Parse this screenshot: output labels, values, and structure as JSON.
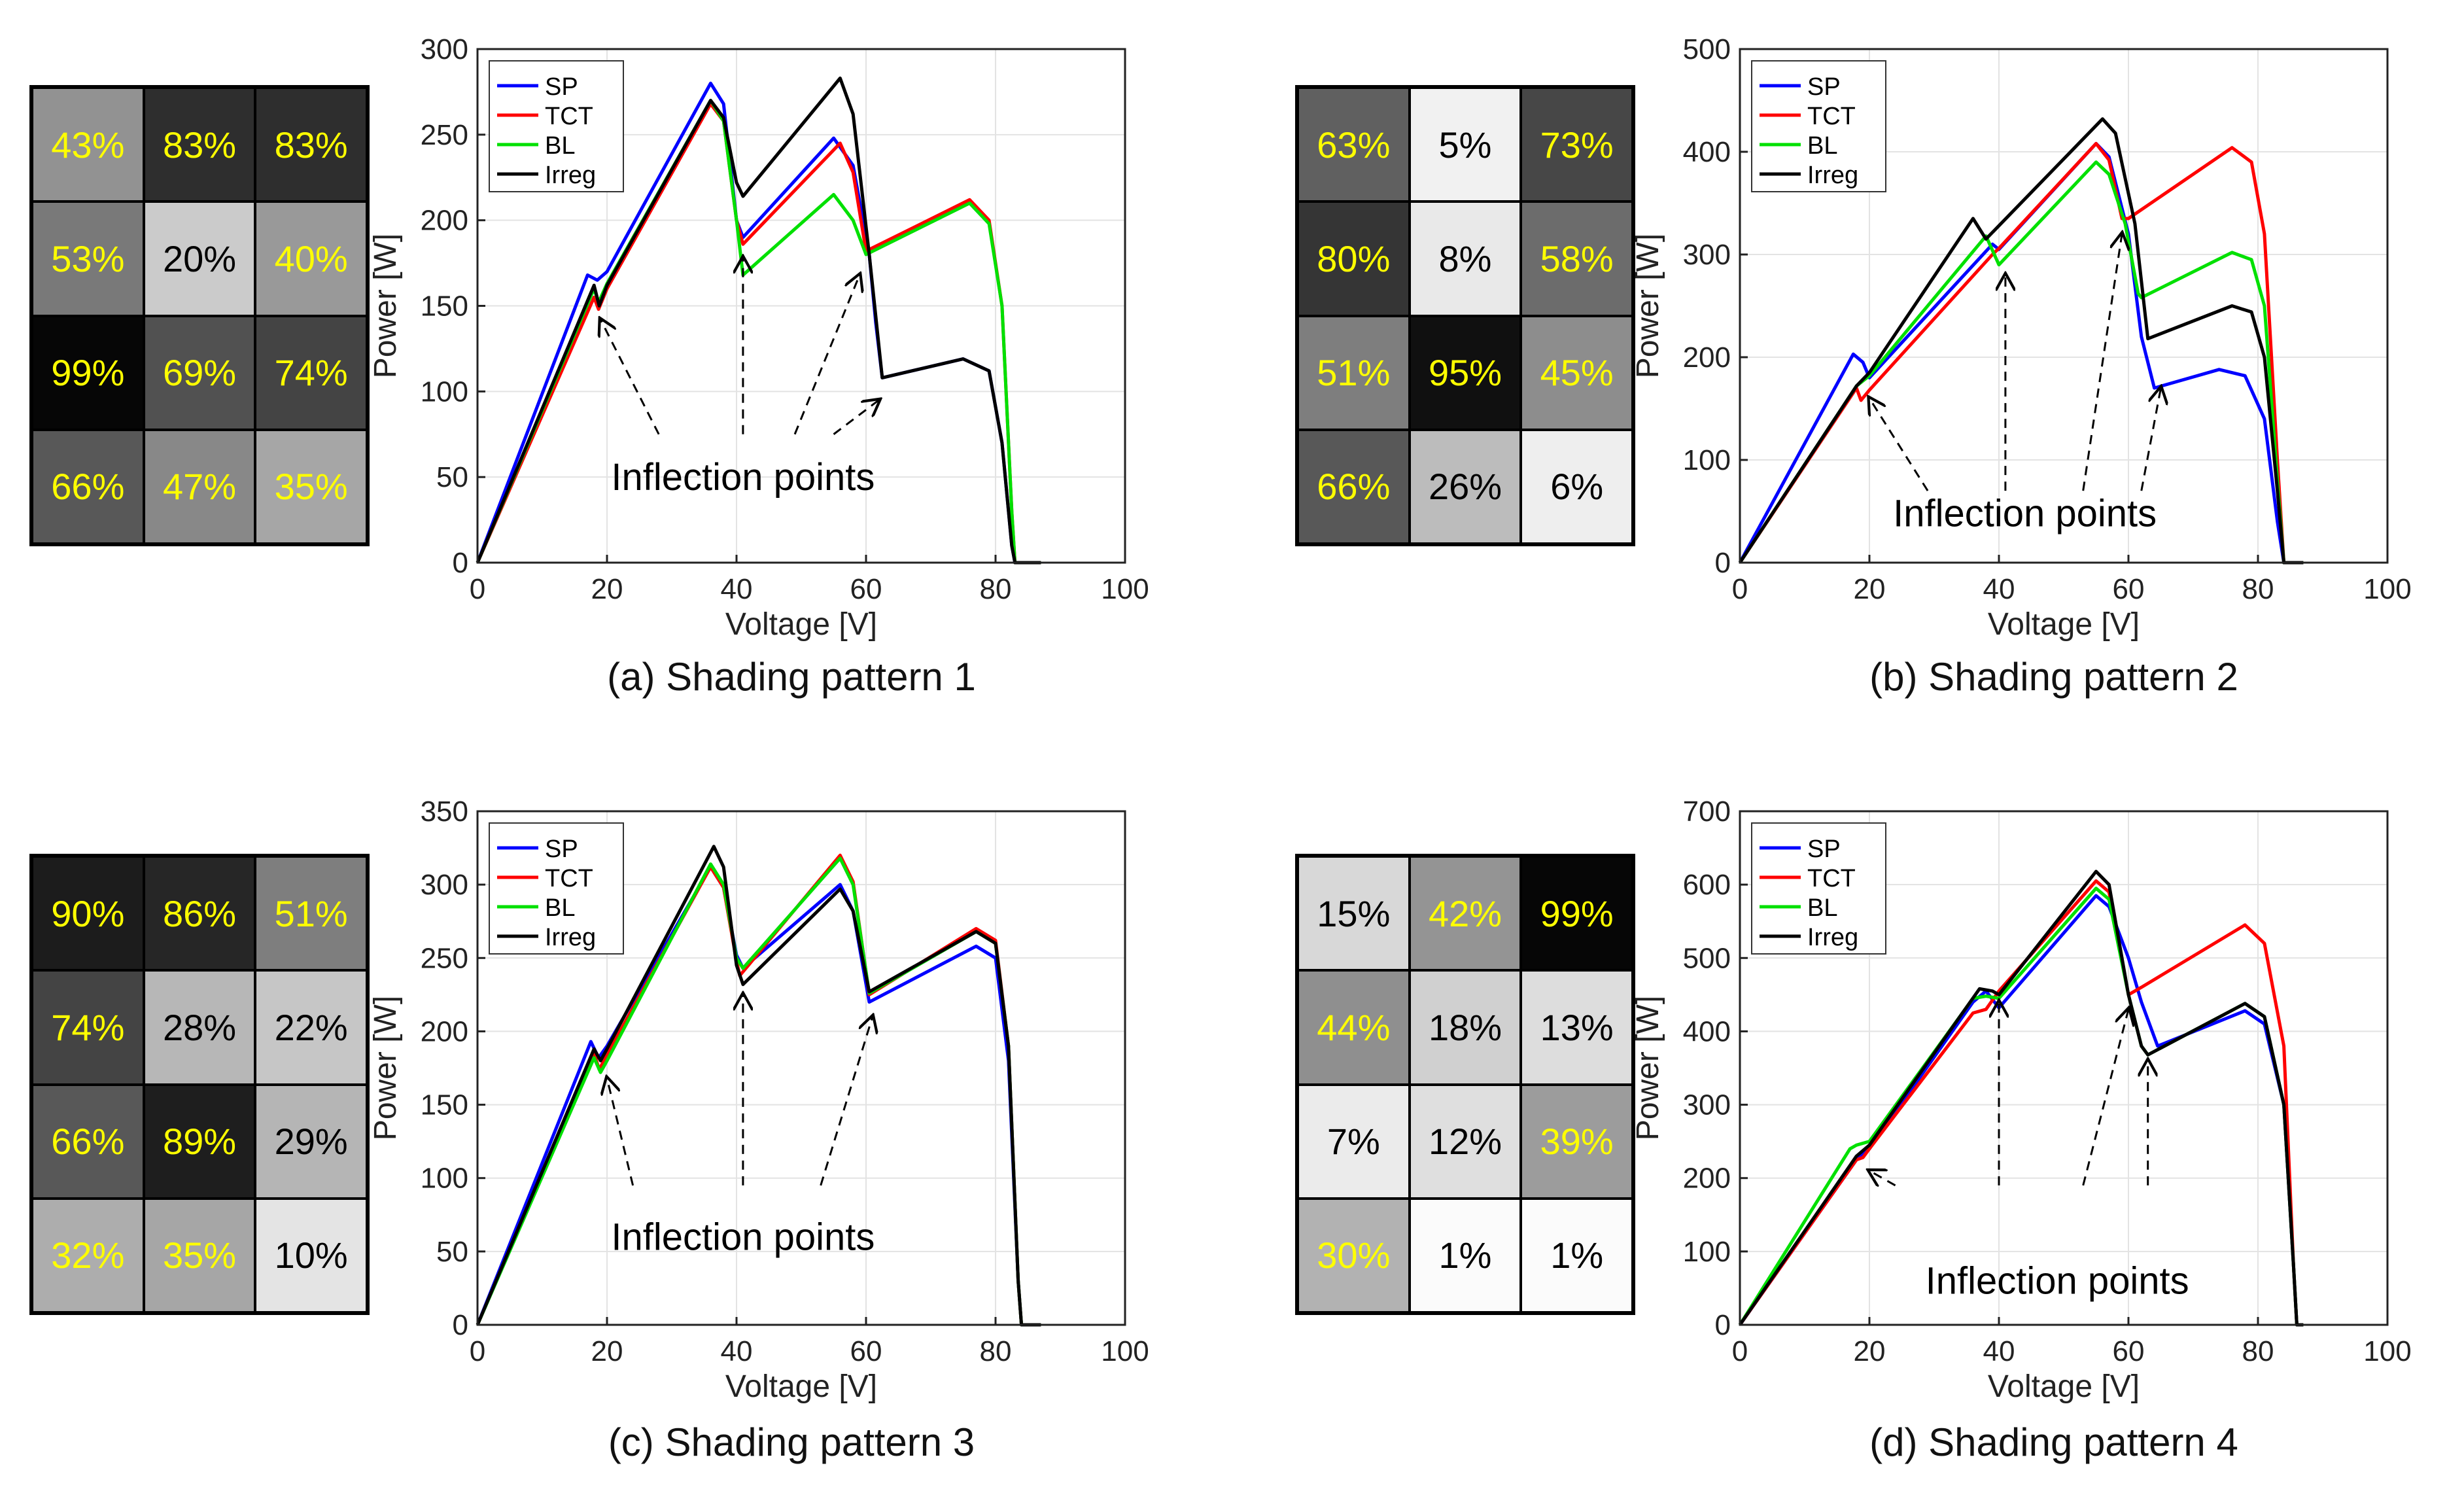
{
  "annotation_text": "Inflection points",
  "colors": {
    "SP": "#0000ff",
    "TCT": "#ff0000",
    "BL": "#00e000",
    "Irreg": "#000000",
    "bright_label": "#ffff00",
    "dark_label": "#000000"
  },
  "chart_data": [
    {
      "id": "a",
      "type": "line",
      "caption": "(a) Shading pattern 1",
      "xlabel": "Voltage [V]",
      "ylabel": "Power [W]",
      "xlim": [
        0,
        100
      ],
      "ylim": [
        0,
        300
      ],
      "xticks": [
        0,
        20,
        40,
        60,
        80,
        100
      ],
      "yticks": [
        0,
        50,
        100,
        150,
        200,
        250,
        300
      ],
      "grid": true,
      "legend_position": "top-left",
      "shading_grid": [
        [
          "43%",
          "83%",
          "83%"
        ],
        [
          "53%",
          "20%",
          "40%"
        ],
        [
          "99%",
          "69%",
          "74%"
        ],
        [
          "66%",
          "47%",
          "35%"
        ]
      ],
      "series": [
        {
          "name": "SP",
          "color": "#0000ff",
          "x": [
            0,
            17,
            18.5,
            20,
            36,
            38,
            40,
            41,
            55,
            58,
            60.5,
            61.5,
            62.5,
            75,
            79,
            81,
            82.5,
            83,
            87
          ],
          "y": [
            0,
            168,
            165,
            170,
            280,
            268,
            200,
            190,
            248,
            232,
            180,
            140,
            108,
            119,
            112,
            70,
            10,
            0,
            0
          ]
        },
        {
          "name": "TCT",
          "color": "#ff0000",
          "x": [
            0,
            18,
            18.7,
            20,
            36,
            38,
            40,
            41,
            56,
            58,
            60,
            76,
            79,
            81,
            82.5,
            83,
            87
          ],
          "y": [
            0,
            155,
            148,
            160,
            268,
            258,
            200,
            186,
            245,
            228,
            182,
            212,
            200,
            150,
            30,
            0,
            0
          ]
        },
        {
          "name": "BL",
          "color": "#00e000",
          "x": [
            0,
            18,
            18.7,
            20,
            36,
            38,
            40,
            41,
            55,
            58,
            60,
            76,
            79,
            81,
            82.5,
            83,
            87
          ],
          "y": [
            0,
            160,
            152,
            163,
            270,
            258,
            200,
            168,
            215,
            200,
            180,
            210,
            198,
            150,
            30,
            0,
            0
          ]
        },
        {
          "name": "Irreg",
          "color": "#000000",
          "x": [
            0,
            18,
            18.8,
            20,
            36,
            38,
            40,
            41,
            56,
            58,
            60.5,
            62.5,
            75,
            79,
            81,
            82.5,
            83,
            87
          ],
          "y": [
            0,
            162,
            150,
            162,
            270,
            260,
            222,
            214,
            283,
            262,
            180,
            108,
            119,
            112,
            70,
            10,
            0,
            0
          ]
        }
      ]
    },
    {
      "id": "b",
      "type": "line",
      "caption": "(b) Shading pattern 2",
      "xlabel": "Voltage [V]",
      "ylabel": "Power [W]",
      "xlim": [
        0,
        100
      ],
      "ylim": [
        0,
        500
      ],
      "xticks": [
        0,
        20,
        40,
        60,
        80,
        100
      ],
      "yticks": [
        0,
        100,
        200,
        300,
        400,
        500
      ],
      "grid": true,
      "legend_position": "top-left",
      "shading_grid": [
        [
          "63%",
          "5%",
          "73%"
        ],
        [
          "80%",
          "8%",
          "58%"
        ],
        [
          "51%",
          "95%",
          "45%"
        ],
        [
          "66%",
          "26%",
          "6%"
        ]
      ],
      "series": [
        {
          "name": "SP",
          "color": "#0000ff",
          "x": [
            0,
            17.5,
            19,
            20,
            39,
            40,
            55,
            57,
            60,
            62,
            64,
            74,
            78,
            81,
            83,
            84,
            87
          ],
          "y": [
            0,
            203,
            195,
            180,
            310,
            305,
            408,
            395,
            320,
            220,
            170,
            188,
            182,
            140,
            40,
            0,
            0
          ]
        },
        {
          "name": "TCT",
          "color": "#ff0000",
          "x": [
            0,
            18,
            18.7,
            20,
            39,
            40,
            55,
            57,
            59,
            60,
            76,
            79,
            81,
            83,
            84,
            87
          ],
          "y": [
            0,
            170,
            158,
            168,
            300,
            306,
            408,
            392,
            335,
            335,
            404,
            390,
            320,
            100,
            0,
            0
          ]
        },
        {
          "name": "BL",
          "color": "#00e000",
          "x": [
            0,
            18,
            20,
            38,
            40,
            55,
            57,
            59.5,
            61.5,
            62,
            76,
            79,
            81,
            83,
            84,
            87
          ],
          "y": [
            0,
            172,
            182,
            318,
            290,
            390,
            378,
            330,
            262,
            258,
            302,
            295,
            250,
            80,
            0,
            0
          ]
        },
        {
          "name": "Irreg",
          "color": "#000000",
          "x": [
            0,
            18,
            20,
            36,
            38,
            56,
            58,
            61,
            63,
            76,
            79,
            81,
            83,
            84,
            87
          ],
          "y": [
            0,
            172,
            185,
            335,
            315,
            432,
            418,
            330,
            218,
            250,
            244,
            200,
            70,
            0,
            0
          ]
        }
      ]
    },
    {
      "id": "c",
      "type": "line",
      "caption": "(c) Shading pattern 3",
      "xlabel": "Voltage [V]",
      "ylabel": "Power [W]",
      "xlim": [
        0,
        100
      ],
      "ylim": [
        0,
        350
      ],
      "xticks": [
        0,
        20,
        40,
        60,
        80,
        100
      ],
      "yticks": [
        0,
        50,
        100,
        150,
        200,
        250,
        300,
        350
      ],
      "grid": true,
      "legend_position": "top-left",
      "shading_grid": [
        [
          "90%",
          "86%",
          "51%"
        ],
        [
          "74%",
          "28%",
          "22%"
        ],
        [
          "66%",
          "89%",
          "29%"
        ],
        [
          "32%",
          "35%",
          "10%"
        ]
      ],
      "series": [
        {
          "name": "SP",
          "color": "#0000ff",
          "x": [
            0,
            17.5,
            18.7,
            20,
            36,
            38,
            40,
            41,
            56,
            58,
            60.5,
            77,
            80,
            82,
            83.5,
            84,
            87
          ],
          "y": [
            0,
            193,
            182,
            190,
            312,
            298,
            252,
            243,
            300,
            282,
            220,
            258,
            250,
            180,
            30,
            0,
            0
          ]
        },
        {
          "name": "TCT",
          "color": "#ff0000",
          "x": [
            0,
            18,
            18.8,
            20,
            36,
            38,
            40,
            40.5,
            56,
            58,
            60.5,
            77,
            80,
            82,
            83.5,
            84,
            87
          ],
          "y": [
            0,
            185,
            174,
            184,
            312,
            298,
            248,
            238,
            320,
            302,
            225,
            270,
            262,
            190,
            30,
            0,
            0
          ]
        },
        {
          "name": "BL",
          "color": "#00e000",
          "x": [
            0,
            18,
            19,
            20,
            36,
            38,
            40,
            41,
            56,
            58,
            60.5,
            77,
            80,
            82,
            83.5,
            84,
            87
          ],
          "y": [
            0,
            182,
            172,
            180,
            314,
            300,
            250,
            243,
            318,
            300,
            226,
            268,
            260,
            190,
            30,
            0,
            0
          ]
        },
        {
          "name": "Irreg",
          "color": "#000000",
          "x": [
            0,
            18,
            19,
            20,
            36.5,
            38,
            40,
            41,
            56,
            58,
            60.5,
            77,
            80,
            82,
            83.5,
            84,
            87
          ],
          "y": [
            0,
            188,
            180,
            188,
            326,
            312,
            245,
            232,
            297,
            282,
            227,
            268,
            260,
            190,
            30,
            0,
            0
          ]
        }
      ]
    },
    {
      "id": "d",
      "type": "line",
      "caption": "(d) Shading pattern 4",
      "xlabel": "Voltage [V]",
      "ylabel": "Power [W]",
      "xlim": [
        0,
        100
      ],
      "ylim": [
        0,
        700
      ],
      "xticks": [
        0,
        20,
        40,
        60,
        80,
        100
      ],
      "yticks": [
        0,
        100,
        200,
        300,
        400,
        500,
        600,
        700
      ],
      "grid": true,
      "legend_position": "top-left",
      "shading_grid": [
        [
          "15%",
          "42%",
          "99%"
        ],
        [
          "44%",
          "18%",
          "13%"
        ],
        [
          "7%",
          "12%",
          "39%"
        ],
        [
          "30%",
          "1%",
          "1%"
        ]
      ],
      "series": [
        {
          "name": "SP",
          "color": "#0000ff",
          "x": [
            0,
            18,
            20,
            36,
            38,
            40,
            55,
            57,
            60,
            62,
            64.5,
            78,
            81,
            84,
            85.5,
            86,
            87
          ],
          "y": [
            0,
            225,
            240,
            440,
            455,
            432,
            585,
            570,
            500,
            440,
            380,
            428,
            410,
            300,
            80,
            0,
            0
          ]
        },
        {
          "name": "TCT",
          "color": "#ff0000",
          "x": [
            0,
            18,
            19,
            20,
            36,
            38,
            40,
            55,
            57,
            60,
            62,
            78,
            81,
            84,
            85.5,
            86,
            87
          ],
          "y": [
            0,
            225,
            228,
            240,
            425,
            430,
            455,
            605,
            590,
            450,
            460,
            545,
            520,
            380,
            80,
            0,
            0
          ]
        },
        {
          "name": "BL",
          "color": "#00e000",
          "x": [
            0,
            17,
            18,
            20,
            36,
            38,
            40,
            55,
            57,
            60,
            62,
            63,
            78,
            81,
            84,
            85.5,
            86,
            87
          ],
          "y": [
            0,
            240,
            245,
            250,
            445,
            448,
            445,
            595,
            580,
            450,
            380,
            368,
            438,
            420,
            300,
            80,
            0,
            0
          ]
        },
        {
          "name": "Irreg",
          "color": "#000000",
          "x": [
            0,
            18,
            20,
            37,
            39,
            40,
            55,
            57,
            60,
            62,
            63,
            78,
            81,
            84,
            85.5,
            86,
            87
          ],
          "y": [
            0,
            230,
            245,
            458,
            455,
            450,
            618,
            600,
            450,
            380,
            368,
            438,
            420,
            300,
            80,
            0,
            0
          ]
        }
      ]
    }
  ]
}
